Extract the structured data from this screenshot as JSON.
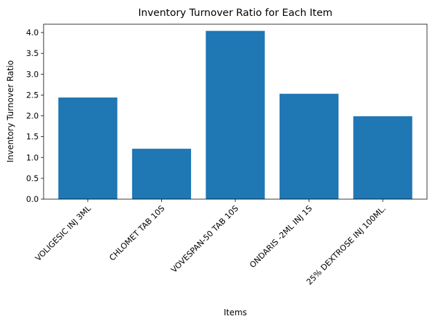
{
  "chart_data": {
    "type": "bar",
    "title": "Inventory Turnover Ratio for Each Item",
    "xlabel": "Items",
    "ylabel": "Inventory Turnover Ratio",
    "categories": [
      "VOLIGESIC INJ 3ML",
      "CHLOMET TAB 10S",
      "VOVESPAN-50 TAB 10S",
      "ONDARIS -2ML INJ 1S",
      "25% DEXTROSE INJ 100ML."
    ],
    "values": [
      2.44,
      1.21,
      4.04,
      2.53,
      1.99
    ],
    "ylim": [
      0,
      4.2
    ],
    "yticks": [
      "0.0",
      "0.5",
      "1.0",
      "1.5",
      "2.0",
      "2.5",
      "3.0",
      "3.5",
      "4.0"
    ],
    "grid": false,
    "legend": "none",
    "bar_color": "#1f77b4"
  }
}
